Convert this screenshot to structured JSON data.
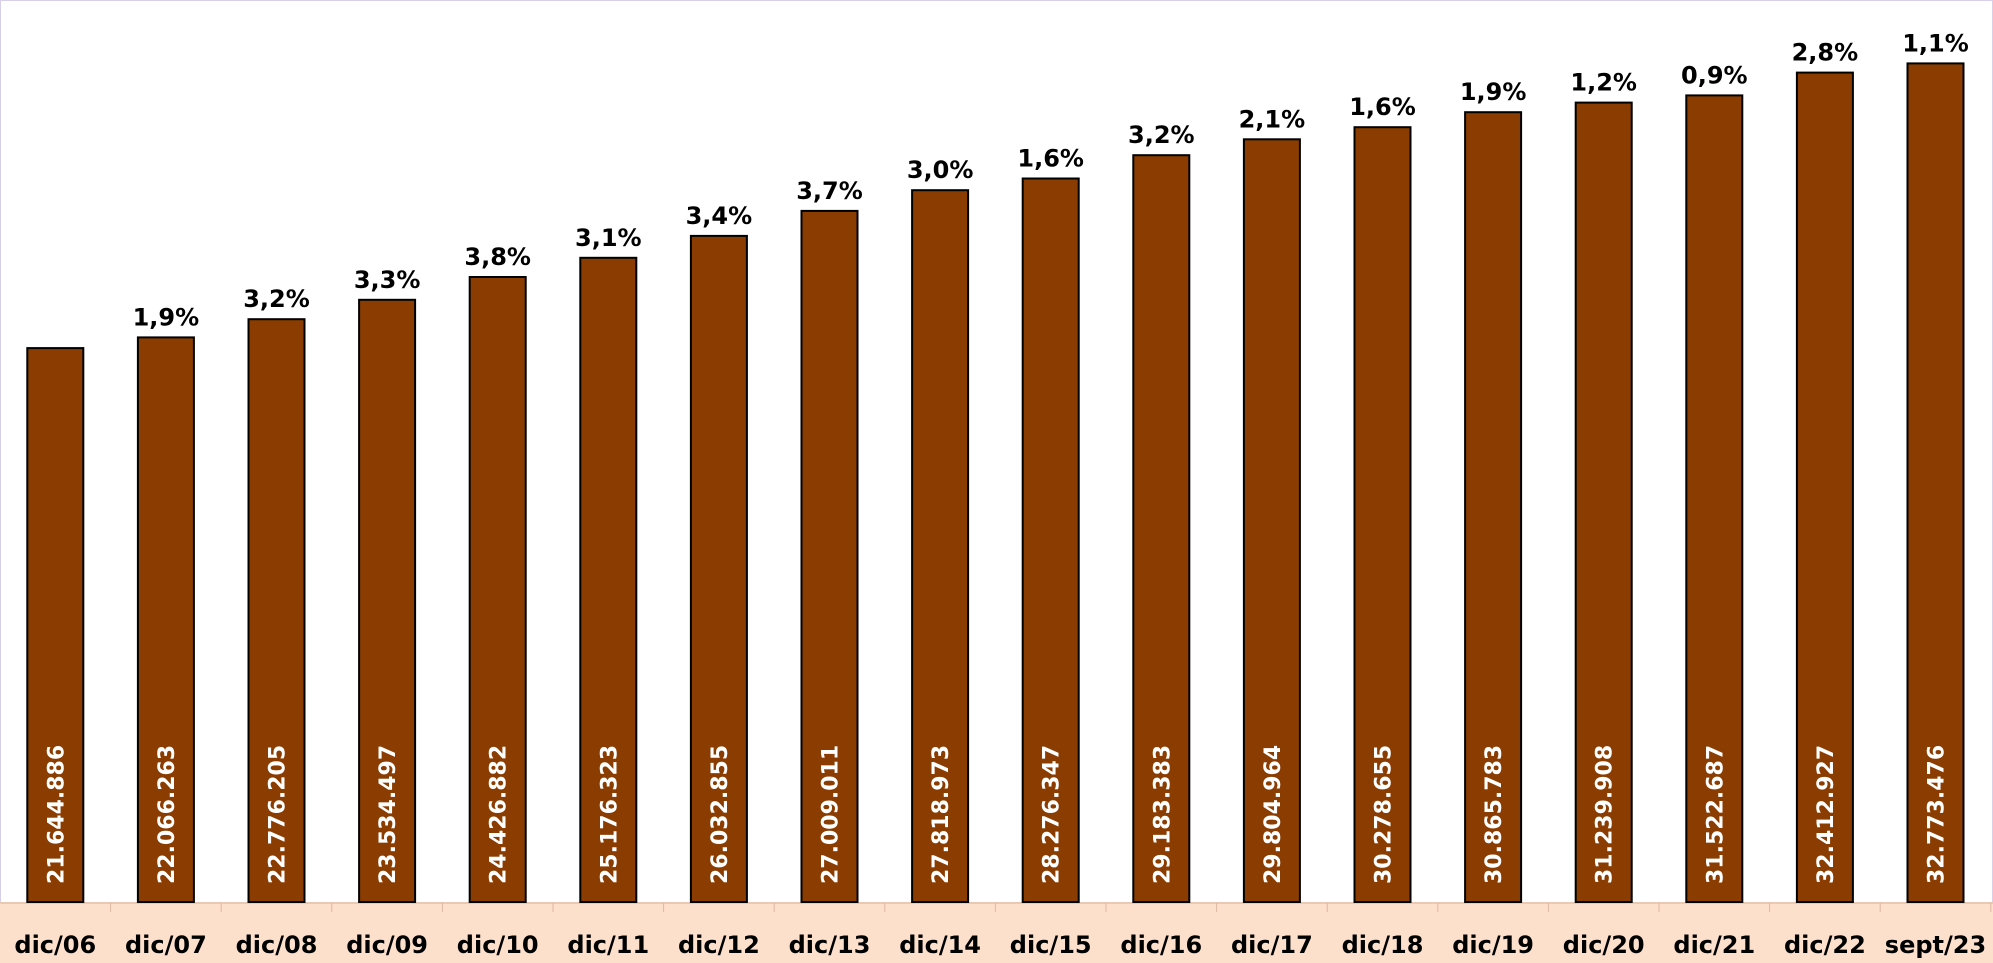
{
  "chart_data": {
    "type": "bar",
    "categories": [
      "dic/06",
      "dic/07",
      "dic/08",
      "dic/09",
      "dic/10",
      "dic/11",
      "dic/12",
      "dic/13",
      "dic/14",
      "dic/15",
      "dic/16",
      "dic/17",
      "dic/18",
      "dic/19",
      "dic/20",
      "dic/21",
      "dic/22",
      "sept/23"
    ],
    "values": [
      21644886,
      22066263,
      22776205,
      23534497,
      24426882,
      25176323,
      26032855,
      27009011,
      27818973,
      28276347,
      29183383,
      29804964,
      30278655,
      30865783,
      31239908,
      31522687,
      32412927,
      32773476
    ],
    "value_labels": [
      "21.644.886",
      "22.066.263",
      "22.776.205",
      "23.534.497",
      "24.426.882",
      "25.176.323",
      "26.032.855",
      "27.009.011",
      "27.818.973",
      "28.276.347",
      "29.183.383",
      "29.804.964",
      "30.278.655",
      "30.865.783",
      "31.239.908",
      "31.522.687",
      "32.412.927",
      "32.773.476"
    ],
    "growth_labels": [
      "",
      "1,9%",
      "3,2%",
      "3,3%",
      "3,8%",
      "3,1%",
      "3,4%",
      "3,7%",
      "3,0%",
      "1,6%",
      "3,2%",
      "2,1%",
      "1,6%",
      "1,9%",
      "1,2%",
      "0,9%",
      "2,8%",
      "1,1%"
    ],
    "title": "",
    "xlabel": "",
    "ylabel": "",
    "ylim": [
      0,
      34000000
    ],
    "grid": false,
    "legend": "none",
    "colors": {
      "bar": "#8b3c00",
      "bar_stroke": "#000000",
      "axis_band": "#fde0cc",
      "value_text": "#ffffff",
      "label_text": "#000000"
    }
  }
}
